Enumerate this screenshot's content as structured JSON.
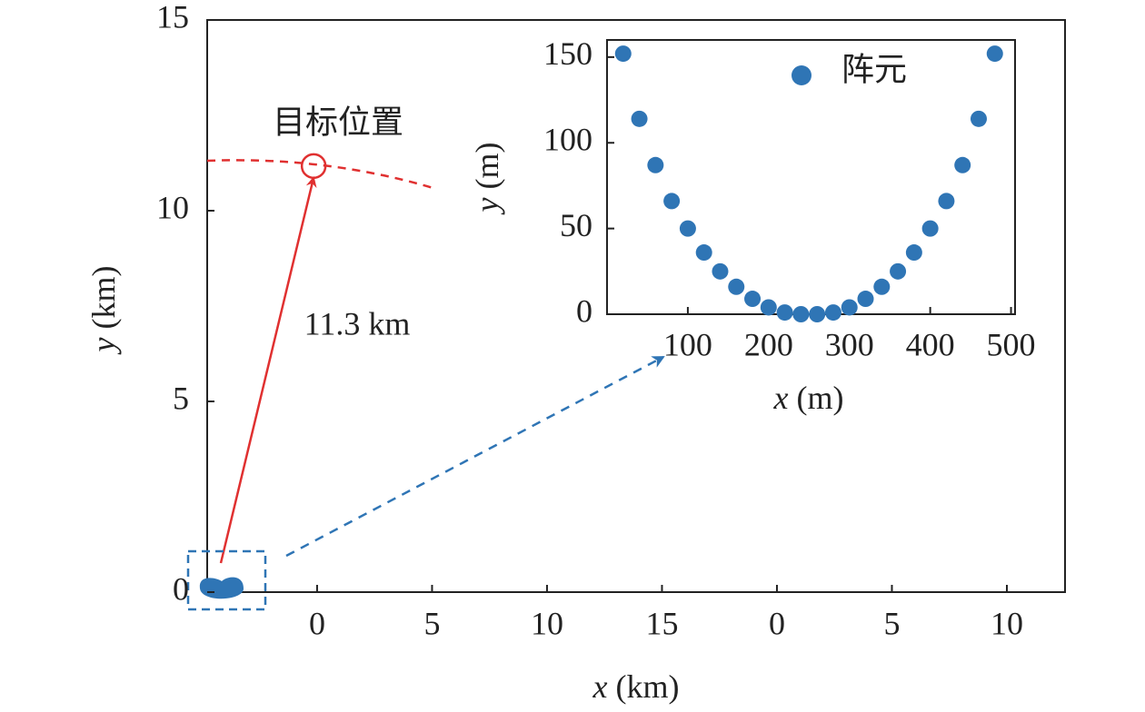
{
  "chart_data": [
    {
      "type": "scatter",
      "xlabel_var": "x",
      "xlabel_unit": "(km)",
      "ylabel_var": "y",
      "ylabel_unit": "(km)",
      "xlim": [
        -4.78,
        32.53
      ],
      "ylim": [
        0,
        15
      ],
      "xticks": [
        0,
        5,
        10,
        15,
        {
          "value": 20,
          "label": "0"
        },
        {
          "value": 25,
          "label": "5"
        },
        {
          "value": 30,
          "label": "10"
        }
      ],
      "yticks": [
        0,
        5,
        10,
        15
      ],
      "series": [
        {
          "name": "目标位置",
          "color": "#e03030",
          "x": [
            -0.15
          ],
          "values": [
            11.17
          ]
        }
      ],
      "annotations": [
        "11.3 km"
      ]
    },
    {
      "type": "scatter",
      "xlabel_var": "x",
      "xlabel_unit": "(m)",
      "ylabel_var": "y",
      "ylabel_unit": "(m)",
      "xlim": [
        0,
        505
      ],
      "ylim": [
        0,
        160
      ],
      "xticks": [
        100,
        200,
        300,
        400,
        500
      ],
      "yticks": [
        0,
        50,
        100,
        150
      ],
      "series": [
        {
          "name": "阵元",
          "color": "#2f75b5",
          "x": [
            20,
            40,
            60,
            80,
            100,
            120,
            140,
            160,
            180,
            200,
            220,
            240,
            260,
            280,
            300,
            320,
            340,
            360,
            380,
            400,
            420,
            440,
            460,
            480
          ],
          "values": [
            152,
            114,
            87,
            66,
            50,
            36,
            25,
            16,
            9,
            4,
            1,
            0,
            0,
            1,
            4,
            9,
            16,
            25,
            36,
            50,
            66,
            87,
            114,
            152
          ]
        }
      ]
    }
  ]
}
